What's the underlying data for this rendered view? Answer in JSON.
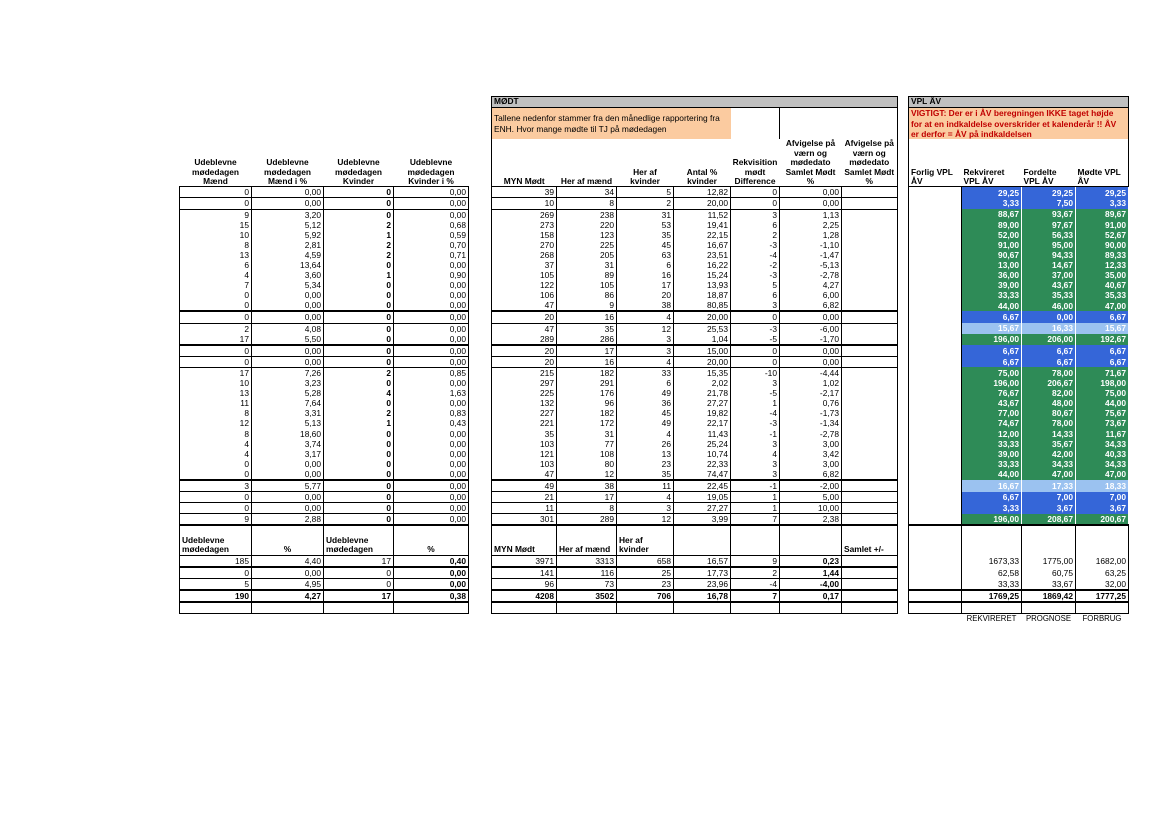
{
  "mid_title": "MØDT",
  "mid_note": "Tallene nedenfor stammer fra den månedlige rapportering fra ENH. Hvor mange mødte til TJ på mødedagen",
  "right_title": "VPL ÅV",
  "right_warning": "VIGTIGT: Der er i ÅV beregningen IKKE taget højde for at en indkaldelse overskrider et kalenderår !! ÅV er derfor = ÅV på indkaldelsen",
  "headers_left": [
    "Udeblevne mødedagen Mænd",
    "Udeblevne mødedagen Mænd i %",
    "Udeblevne mødedagen Kvinder",
    "Udeblevne mødedagen Kvinder i %"
  ],
  "headers_mid": [
    "MYN Mødt",
    "Her af mænd",
    "Her af kvinder",
    "Antal % kvinder",
    "Rekvisition mødt Difference",
    "Afvigelse på værn og mødedato Samlet Mødt %",
    "Afvigelse på værn og mødedato Samlet Mødt %"
  ],
  "headers_right": [
    "Forlig VPL ÅV",
    "Rekvireret VPL ÅV",
    "Fordelte VPL ÅV",
    "Mødte VPL ÅV"
  ],
  "rows": [
    {
      "l": [
        "0",
        "0,00",
        "0",
        "0,00"
      ],
      "m": [
        "39",
        "34",
        "5",
        "12,82",
        "0",
        "0,00",
        ""
      ],
      "r": [
        "29,25",
        "29,25",
        "29,25"
      ],
      "c": "cb",
      "line": "top"
    },
    {
      "l": [
        "0",
        "0,00",
        "0",
        "0,00"
      ],
      "m": [
        "10",
        "8",
        "2",
        "20,00",
        "0",
        "0,00",
        ""
      ],
      "r": [
        "3,33",
        "7,50",
        "3,33"
      ],
      "c": "cb",
      "line": "top"
    },
    {
      "l": [
        "9",
        "3,20",
        "0",
        "0,00"
      ],
      "m": [
        "269",
        "238",
        "31",
        "11,52",
        "3",
        "1,13",
        ""
      ],
      "r": [
        "88,67",
        "93,67",
        "89,67"
      ],
      "c": "cg",
      "line": "top"
    },
    {
      "l": [
        "15",
        "5,12",
        "2",
        "0,68"
      ],
      "m": [
        "273",
        "220",
        "53",
        "19,41",
        "6",
        "2,25",
        ""
      ],
      "r": [
        "89,00",
        "97,67",
        "91,00"
      ],
      "c": "cg"
    },
    {
      "l": [
        "10",
        "5,92",
        "1",
        "0,59"
      ],
      "m": [
        "158",
        "123",
        "35",
        "22,15",
        "2",
        "1,28",
        ""
      ],
      "r": [
        "52,00",
        "56,33",
        "52,67"
      ],
      "c": "cg"
    },
    {
      "l": [
        "8",
        "2,81",
        "2",
        "0,70"
      ],
      "m": [
        "270",
        "225",
        "45",
        "16,67",
        "-3",
        "-1,10",
        ""
      ],
      "r": [
        "91,00",
        "95,00",
        "90,00"
      ],
      "c": "cg"
    },
    {
      "l": [
        "13",
        "4,59",
        "2",
        "0,71"
      ],
      "m": [
        "268",
        "205",
        "63",
        "23,51",
        "-4",
        "-1,47",
        ""
      ],
      "r": [
        "90,67",
        "94,33",
        "89,33"
      ],
      "c": "cg"
    },
    {
      "l": [
        "6",
        "13,64",
        "0",
        "0,00"
      ],
      "m": [
        "37",
        "31",
        "6",
        "16,22",
        "-2",
        "-5,13",
        ""
      ],
      "r": [
        "13,00",
        "14,67",
        "12,33"
      ],
      "c": "cg"
    },
    {
      "l": [
        "4",
        "3,60",
        "1",
        "0,90"
      ],
      "m": [
        "105",
        "89",
        "16",
        "15,24",
        "-3",
        "-2,78",
        ""
      ],
      "r": [
        "36,00",
        "37,00",
        "35,00"
      ],
      "c": "cg"
    },
    {
      "l": [
        "7",
        "5,34",
        "0",
        "0,00"
      ],
      "m": [
        "122",
        "105",
        "17",
        "13,93",
        "5",
        "4,27",
        ""
      ],
      "r": [
        "39,00",
        "43,67",
        "40,67"
      ],
      "c": "cg"
    },
    {
      "l": [
        "0",
        "0,00",
        "0",
        "0,00"
      ],
      "m": [
        "106",
        "86",
        "20",
        "18,87",
        "6",
        "6,00",
        ""
      ],
      "r": [
        "33,33",
        "35,33",
        "35,33"
      ],
      "c": "cg"
    },
    {
      "l": [
        "0",
        "0,00",
        "0",
        "0,00"
      ],
      "m": [
        "47",
        "9",
        "38",
        "80,85",
        "3",
        "6,82",
        ""
      ],
      "r": [
        "44,00",
        "46,00",
        "47,00"
      ],
      "c": "cg"
    },
    {
      "l": [
        "0",
        "0,00",
        "0",
        "0,00"
      ],
      "m": [
        "20",
        "16",
        "4",
        "20,00",
        "0",
        "0,00",
        ""
      ],
      "r": [
        "6,67",
        "0,00",
        "6,67"
      ],
      "c": "cb",
      "line": "thick"
    },
    {
      "l": [
        "2",
        "4,08",
        "0",
        "0,00"
      ],
      "m": [
        "47",
        "35",
        "12",
        "25,53",
        "-3",
        "-6,00",
        ""
      ],
      "r": [
        "15,67",
        "16,33",
        "15,67"
      ],
      "c": "cl",
      "line": "top"
    },
    {
      "l": [
        "17",
        "5,50",
        "0",
        "0,00"
      ],
      "m": [
        "289",
        "286",
        "3",
        "1,04",
        "-5",
        "-1,70",
        ""
      ],
      "r": [
        "196,00",
        "206,00",
        "192,67"
      ],
      "c": "cg"
    },
    {
      "l": [
        "0",
        "0,00",
        "0",
        "0,00"
      ],
      "m": [
        "20",
        "17",
        "3",
        "15,00",
        "0",
        "0,00",
        ""
      ],
      "r": [
        "6,67",
        "6,67",
        "6,67"
      ],
      "c": "cb",
      "line": "thick"
    },
    {
      "l": [
        "0",
        "0,00",
        "0",
        "0,00"
      ],
      "m": [
        "20",
        "16",
        "4",
        "20,00",
        "0",
        "0,00",
        ""
      ],
      "r": [
        "6,67",
        "6,67",
        "6,67"
      ],
      "c": "cb",
      "line": "top"
    },
    {
      "l": [
        "17",
        "7,26",
        "2",
        "0,85"
      ],
      "m": [
        "215",
        "182",
        "33",
        "15,35",
        "-10",
        "-4,44",
        ""
      ],
      "r": [
        "75,00",
        "78,00",
        "71,67"
      ],
      "c": "cg",
      "line": "top"
    },
    {
      "l": [
        "10",
        "3,23",
        "0",
        "0,00"
      ],
      "m": [
        "297",
        "291",
        "6",
        "2,02",
        "3",
        "1,02",
        ""
      ],
      "r": [
        "196,00",
        "206,67",
        "198,00"
      ],
      "c": "cg"
    },
    {
      "l": [
        "13",
        "5,28",
        "4",
        "1,63"
      ],
      "m": [
        "225",
        "176",
        "49",
        "21,78",
        "-5",
        "-2,17",
        ""
      ],
      "r": [
        "76,67",
        "82,00",
        "75,00"
      ],
      "c": "cg"
    },
    {
      "l": [
        "11",
        "7,64",
        "0",
        "0,00"
      ],
      "m": [
        "132",
        "96",
        "36",
        "27,27",
        "1",
        "0,76",
        ""
      ],
      "r": [
        "43,67",
        "48,00",
        "44,00"
      ],
      "c": "cg"
    },
    {
      "l": [
        "8",
        "3,31",
        "2",
        "0,83"
      ],
      "m": [
        "227",
        "182",
        "45",
        "19,82",
        "-4",
        "-1,73",
        ""
      ],
      "r": [
        "77,00",
        "80,67",
        "75,67"
      ],
      "c": "cg"
    },
    {
      "l": [
        "12",
        "5,13",
        "1",
        "0,43"
      ],
      "m": [
        "221",
        "172",
        "49",
        "22,17",
        "-3",
        "-1,34",
        ""
      ],
      "r": [
        "74,67",
        "78,00",
        "73,67"
      ],
      "c": "cg"
    },
    {
      "l": [
        "8",
        "18,60",
        "0",
        "0,00"
      ],
      "m": [
        "35",
        "31",
        "4",
        "11,43",
        "-1",
        "-2,78",
        ""
      ],
      "r": [
        "12,00",
        "14,33",
        "11,67"
      ],
      "c": "cg"
    },
    {
      "l": [
        "4",
        "3,74",
        "0",
        "0,00"
      ],
      "m": [
        "103",
        "77",
        "26",
        "25,24",
        "3",
        "3,00",
        ""
      ],
      "r": [
        "33,33",
        "35,67",
        "34,33"
      ],
      "c": "cg"
    },
    {
      "l": [
        "4",
        "3,17",
        "0",
        "0,00"
      ],
      "m": [
        "121",
        "108",
        "13",
        "10,74",
        "4",
        "3,42",
        ""
      ],
      "r": [
        "39,00",
        "42,00",
        "40,33"
      ],
      "c": "cg"
    },
    {
      "l": [
        "0",
        "0,00",
        "0",
        "0,00"
      ],
      "m": [
        "103",
        "80",
        "23",
        "22,33",
        "3",
        "3,00",
        ""
      ],
      "r": [
        "33,33",
        "34,33",
        "34,33"
      ],
      "c": "cg"
    },
    {
      "l": [
        "0",
        "0,00",
        "0",
        "0,00"
      ],
      "m": [
        "47",
        "12",
        "35",
        "74,47",
        "3",
        "6,82",
        ""
      ],
      "r": [
        "44,00",
        "47,00",
        "47,00"
      ],
      "c": "cg"
    },
    {
      "l": [
        "3",
        "5,77",
        "0",
        "0,00"
      ],
      "m": [
        "49",
        "38",
        "11",
        "22,45",
        "-1",
        "-2,00",
        ""
      ],
      "r": [
        "16,67",
        "17,33",
        "18,33"
      ],
      "c": "cl",
      "line": "thick"
    },
    {
      "l": [
        "0",
        "0,00",
        "0",
        "0,00"
      ],
      "m": [
        "21",
        "17",
        "4",
        "19,05",
        "1",
        "5,00",
        ""
      ],
      "r": [
        "6,67",
        "7,00",
        "7,00"
      ],
      "c": "cb",
      "line": "top"
    },
    {
      "l": [
        "0",
        "0,00",
        "0",
        "0,00"
      ],
      "m": [
        "11",
        "8",
        "3",
        "27,27",
        "1",
        "10,00",
        ""
      ],
      "r": [
        "3,33",
        "3,67",
        "3,67"
      ],
      "c": "cb",
      "line": "top"
    },
    {
      "l": [
        "9",
        "2,88",
        "0",
        "0,00"
      ],
      "m": [
        "301",
        "289",
        "12",
        "3,99",
        "7",
        "2,38",
        ""
      ],
      "r": [
        "196,00",
        "208,67",
        "200,67"
      ],
      "c": "cg",
      "line": "top"
    }
  ],
  "sum_headers_left": [
    "Udeblevne mødedagen",
    "%",
    "Udeblevne mødedagen",
    "%"
  ],
  "sum_headers_mid": [
    "MYN Mødt",
    "Her af mænd",
    "Her af kvinder",
    "",
    "",
    "",
    "Samlet +/-"
  ],
  "summary": [
    {
      "l": [
        "185",
        "4,40",
        "17",
        "0,40"
      ],
      "m": [
        "3971",
        "3313",
        "658",
        "16,57",
        "9",
        "0,23",
        ""
      ],
      "r": [
        "",
        "1673,33",
        "1775,00",
        "1682,00"
      ]
    },
    {
      "l": [
        "0",
        "0,00",
        "0",
        "0,00"
      ],
      "m": [
        "141",
        "116",
        "25",
        "17,73",
        "2",
        "1,44",
        ""
      ],
      "r": [
        "",
        "62,58",
        "60,75",
        "63,25"
      ]
    },
    {
      "l": [
        "5",
        "4,95",
        "0",
        "0,00"
      ],
      "m": [
        "96",
        "73",
        "23",
        "23,96",
        "-4",
        "-4,00",
        ""
      ],
      "r": [
        "",
        "33,33",
        "33,67",
        "32,00"
      ]
    },
    {
      "l": [
        "190",
        "4,27",
        "17",
        "0,38"
      ],
      "m": [
        "4208",
        "3502",
        "706",
        "16,78",
        "7",
        "0,17",
        ""
      ],
      "r": [
        "",
        "1769,25",
        "1869,42",
        "1777,25"
      ]
    }
  ],
  "footer_labels": [
    "REKVIRERET",
    "PROGNOSE",
    "FORBRUG"
  ]
}
